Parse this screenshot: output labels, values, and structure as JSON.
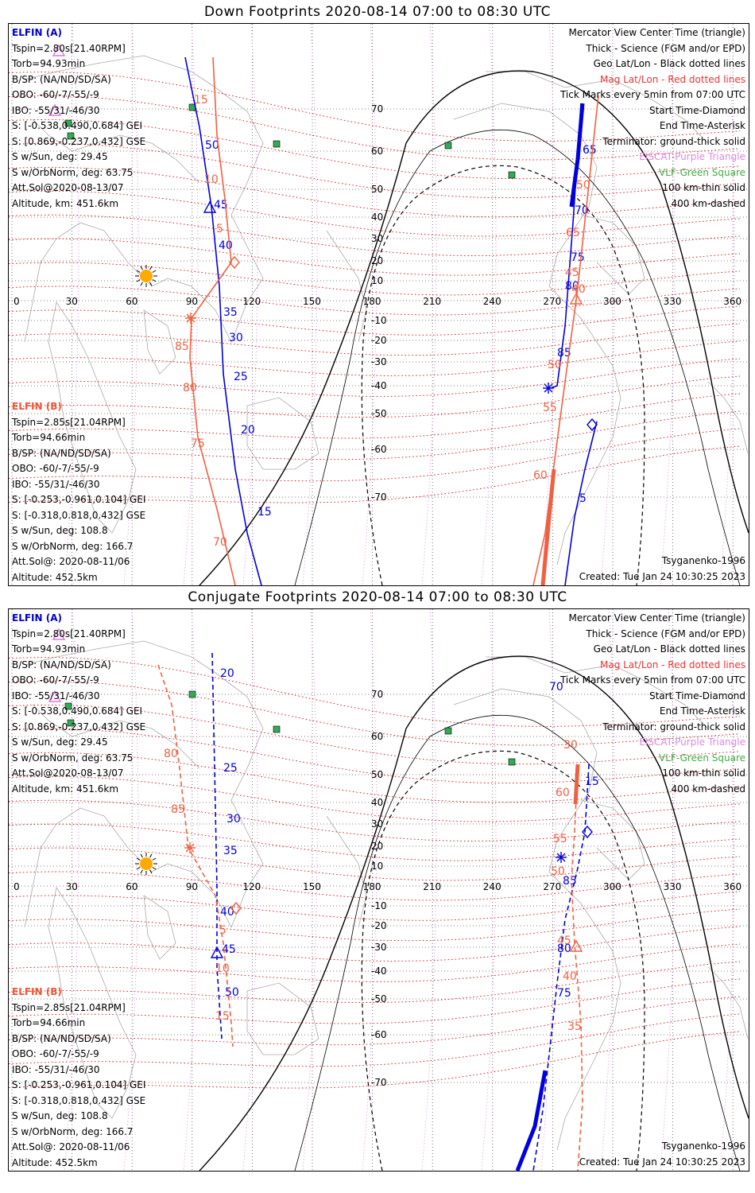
{
  "panels": [
    {
      "title": "Down Footprints 2020-08-14 07:00 to 08:30 UTC",
      "elfin_a": [
        "ELFIN (A)",
        "Tspin=2.80s[21.40RPM]",
        "Torb=94.93min",
        "B/SP: (NA/ND/SD/SA)",
        "OBO: -60/-7/-55/-9",
        "IBO: -55/31/-46/30",
        "S: [-0.538,0.490,0.684] GEI",
        "S: [0.869,-0.237,0.432] GSE",
        "S w/Sun, deg: 29.45",
        "S w/OrbNorm, deg: 63.75",
        "Att.Sol@2020-08-13/07",
        "Altitude, km: 451.6km"
      ],
      "elfin_b": [
        "ELFIN (B)",
        "Tspin=2.85s[21.04RPM]",
        "Torb=94.66min",
        "B/SP: (NA/ND/SD/SA)",
        "OBO: -60/-7/-55/-9",
        "IBO: -55/31/-46/30",
        "S: [-0.253,-0.961,0.104] GEI",
        "S: [-0.318,0.818,0.432] GSE",
        "S w/Sun, deg: 108.8",
        "S w/OrbNorm, deg: 166.7",
        "Att.Sol@: 2020-08-11/06",
        "Altitude: 452.5km"
      ],
      "model": "Tsyganenko-1996",
      "created": "Created: Tue Jan 24 10:30:25 2023"
    },
    {
      "title": "Conjugate Footprints 2020-08-14 07:00 to 08:30 UTC",
      "elfin_a": [
        "ELFIN (A)",
        "Tspin=2.80s[21.40RPM]",
        "Torb=94.93min",
        "B/SP: (NA/ND/SD/SA)",
        "OBO: -60/-7/-55/-9",
        "IBO: -55/31/-46/30",
        "S: [-0.538,0.490,0.684] GEI",
        "S: [0.869,-0.237,0.432] GSE",
        "S w/Sun, deg: 29.45",
        "S w/OrbNorm, deg: 63.75",
        "Att.Sol@2020-08-13/07",
        "Altitude, km: 451.6km"
      ],
      "elfin_b": [
        "ELFIN (B)",
        "Tspin=2.85s[21.04RPM]",
        "Torb=94.66min",
        "B/SP: (NA/ND/SD/SA)",
        "OBO: -60/-7/-55/-9",
        "IBO: -55/31/-46/30",
        "S: [-0.253,-0.961,0.104] GEI",
        "S: [-0.318,0.818,0.432] GSE",
        "S w/Sun, deg: 108.8",
        "S w/OrbNorm, deg: 166.7",
        "Att.Sol@: 2020-08-11/06",
        "Altitude: 452.5km"
      ],
      "model": "Tsyganenko-1996",
      "created": "Created: Tue Jan 24 10:30:25 2023"
    }
  ],
  "legend": [
    {
      "text": "Mercator View Center Time (triangle)",
      "color": "black"
    },
    {
      "text": "Thick - Science (FGM and/or EPD)",
      "color": "black"
    },
    {
      "text": "Geo Lat/Lon - Black dotted lines",
      "color": "black"
    },
    {
      "text": "Mag Lat/Lon - Red dotted lines",
      "color": "red"
    },
    {
      "text": "Tick Marks every 5min from 07:00 UTC",
      "color": "black"
    },
    {
      "text": "Start Time-Diamond",
      "color": "black"
    },
    {
      "text": "End Time-Asterisk",
      "color": "black"
    },
    {
      "text": "Terminator: ground-thick solid",
      "color": "black"
    },
    {
      "text": "EISCAT-Purple Triangle",
      "color": "purple"
    },
    {
      "text": "VLF-Green Square",
      "color": "green"
    },
    {
      "text": "100 km-thin solid",
      "color": "black"
    },
    {
      "text": "400 km-dashed",
      "color": "black"
    }
  ],
  "lon_ticks": [
    "0",
    "30",
    "60",
    "90",
    "120",
    "150",
    "180",
    "210",
    "240",
    "270",
    "300",
    "330",
    "360"
  ],
  "lat_ticks_pos": [
    "70",
    "60",
    "50",
    "40",
    "30",
    "20",
    "10"
  ],
  "lat_ticks_neg": [
    "-10",
    "-20",
    "-30",
    "-40",
    "-50",
    "-60",
    "-70"
  ],
  "colors": {
    "elfin_a": "#0000dd",
    "elfin_b": "#f06040",
    "grid": "#000000",
    "mag": "#e00000",
    "eiscat": "#dd77dd",
    "vlf": "#33aa55",
    "sun": "#ffaa00"
  },
  "tracks": {
    "down_a_labels": [
      "50",
      "45",
      "40",
      "35",
      "30",
      "25",
      "20",
      "15",
      "65",
      "70",
      "75",
      "80",
      "85",
      "5"
    ],
    "down_b_labels": [
      "15",
      "10",
      "5",
      "85",
      "80",
      "75",
      "70",
      "50",
      "55",
      "60",
      "65",
      "40",
      "45",
      "50"
    ],
    "conj_a_labels": [
      "20",
      "25",
      "30",
      "35",
      "40",
      "45",
      "50",
      "15",
      "80",
      "75",
      "70",
      "85"
    ],
    "conj_b_labels": [
      "80",
      "85",
      "5",
      "10",
      "15",
      "60",
      "55",
      "50",
      "45",
      "40",
      "35",
      "30"
    ]
  }
}
